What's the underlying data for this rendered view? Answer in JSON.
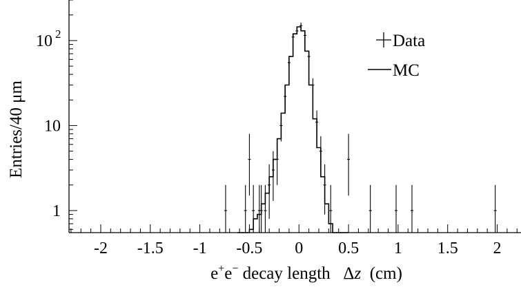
{
  "chart_data": {
    "type": "histogram",
    "xlabel_parts": [
      "e",
      "+",
      "e",
      "−",
      " decay length   ",
      "Δ",
      "z",
      "  (cm)"
    ],
    "ylabel": "Entries/40 μm",
    "xlim": [
      -2.32,
      2.24
    ],
    "ylim": [
      0.55,
      300
    ],
    "y_scale": "log",
    "grid": false,
    "legend_position": "top-right",
    "x_ticks": [
      {
        "value": -2,
        "label": "-2"
      },
      {
        "value": -1.5,
        "label": "-1.5"
      },
      {
        "value": -1,
        "label": "-1"
      },
      {
        "value": -0.5,
        "label": "-0.5"
      },
      {
        "value": 0,
        "label": "0"
      },
      {
        "value": 0.5,
        "label": "0.5"
      },
      {
        "value": 1,
        "label": "1"
      },
      {
        "value": 1.5,
        "label": "1.5"
      },
      {
        "value": 2,
        "label": "2"
      }
    ],
    "y_ticks": [
      {
        "value": 1,
        "label": "1",
        "sup": ""
      },
      {
        "value": 10,
        "label": "10",
        "sup": ""
      },
      {
        "value": 100,
        "label": "10",
        "sup": "2"
      }
    ],
    "series": [
      {
        "name": "Data",
        "style": "points",
        "points": [
          {
            "x": -0.74,
            "y": 1,
            "lo": 0.55,
            "hi": 2
          },
          {
            "x": -0.54,
            "y": 1,
            "lo": 0.55,
            "hi": 2
          },
          {
            "x": -0.5,
            "y": 4,
            "lo": 1.5,
            "hi": 8
          },
          {
            "x": -0.46,
            "y": 1,
            "lo": 0.55,
            "hi": 2
          },
          {
            "x": -0.4,
            "y": 1,
            "lo": 0.55,
            "hi": 2
          },
          {
            "x": -0.38,
            "y": 1,
            "lo": 0.55,
            "hi": 2
          },
          {
            "x": -0.34,
            "y": 1,
            "lo": 0.55,
            "hi": 2
          },
          {
            "x": -0.3,
            "y": 2,
            "lo": 0.8,
            "hi": 3.5
          },
          {
            "x": -0.26,
            "y": 3,
            "lo": 1.3,
            "hi": 5
          },
          {
            "x": -0.22,
            "y": 4,
            "lo": 2,
            "hi": 6
          },
          {
            "x": -0.18,
            "y": 10,
            "lo": 6.5,
            "hi": 14
          },
          {
            "x": -0.14,
            "y": 22,
            "lo": 17,
            "hi": 28
          },
          {
            "x": -0.1,
            "y": 55,
            "lo": 48,
            "hi": 63
          },
          {
            "x": -0.06,
            "y": 110,
            "lo": 100,
            "hi": 121
          },
          {
            "x": -0.02,
            "y": 130,
            "lo": 119,
            "hi": 142
          },
          {
            "x": 0.02,
            "y": 150,
            "lo": 138,
            "hi": 163
          },
          {
            "x": 0.06,
            "y": 115,
            "lo": 104,
            "hi": 126
          },
          {
            "x": 0.1,
            "y": 65,
            "lo": 57,
            "hi": 73
          },
          {
            "x": 0.14,
            "y": 30,
            "lo": 24,
            "hi": 36
          },
          {
            "x": 0.18,
            "y": 11,
            "lo": 7.5,
            "hi": 15
          },
          {
            "x": 0.22,
            "y": 5,
            "lo": 3,
            "hi": 7.5
          },
          {
            "x": 0.26,
            "y": 2,
            "lo": 0.9,
            "hi": 3.5
          },
          {
            "x": 0.32,
            "y": 1,
            "lo": 0.55,
            "hi": 2
          },
          {
            "x": 0.5,
            "y": 4,
            "lo": 1.5,
            "hi": 8
          },
          {
            "x": 0.72,
            "y": 1,
            "lo": 0.55,
            "hi": 2
          },
          {
            "x": 0.98,
            "y": 1,
            "lo": 0.55,
            "hi": 2
          },
          {
            "x": 1.14,
            "y": 1,
            "lo": 0.55,
            "hi": 2
          },
          {
            "x": 1.98,
            "y": 1,
            "lo": 0.55,
            "hi": 2
          }
        ]
      },
      {
        "name": "MC",
        "style": "step",
        "bin_width": 0.04,
        "bins": [
          {
            "x": -0.6,
            "y": 0.55
          },
          {
            "x": -0.56,
            "y": 0.55
          },
          {
            "x": -0.52,
            "y": 0.55
          },
          {
            "x": -0.48,
            "y": 0.6
          },
          {
            "x": -0.44,
            "y": 0.8
          },
          {
            "x": -0.4,
            "y": 0.9
          },
          {
            "x": -0.36,
            "y": 1.2
          },
          {
            "x": -0.32,
            "y": 1.6
          },
          {
            "x": -0.28,
            "y": 2.5
          },
          {
            "x": -0.24,
            "y": 4
          },
          {
            "x": -0.2,
            "y": 7
          },
          {
            "x": -0.16,
            "y": 14
          },
          {
            "x": -0.12,
            "y": 30
          },
          {
            "x": -0.08,
            "y": 65
          },
          {
            "x": -0.04,
            "y": 120
          },
          {
            "x": 0.0,
            "y": 145
          },
          {
            "x": 0.04,
            "y": 130
          },
          {
            "x": 0.08,
            "y": 75
          },
          {
            "x": 0.12,
            "y": 30
          },
          {
            "x": 0.16,
            "y": 12
          },
          {
            "x": 0.2,
            "y": 5.5
          },
          {
            "x": 0.24,
            "y": 2.5
          },
          {
            "x": 0.28,
            "y": 1.2
          },
          {
            "x": 0.32,
            "y": 0.7
          },
          {
            "x": 0.36,
            "y": 0.55
          },
          {
            "x": 0.4,
            "y": 0.55
          },
          {
            "x": 0.44,
            "y": 0.55
          },
          {
            "x": 0.48,
            "y": 0.55
          }
        ]
      }
    ]
  }
}
